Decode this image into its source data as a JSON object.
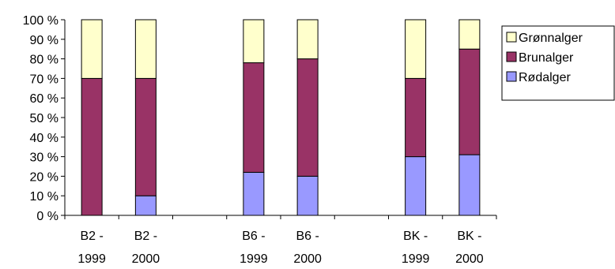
{
  "chart_data": {
    "type": "bar",
    "stacked": true,
    "categories": [
      [
        "B2 -",
        "1999"
      ],
      [
        "B2 -",
        "2000"
      ],
      [
        "",
        ""
      ],
      [
        "B6 -",
        "1999"
      ],
      [
        "B6 -",
        "2000"
      ],
      [
        "",
        ""
      ],
      [
        "BK -",
        "1999"
      ],
      [
        "BK -",
        "2000"
      ]
    ],
    "series": [
      {
        "name": "Rødalger",
        "color": "#9999ff",
        "values": [
          0,
          10,
          0,
          22,
          20,
          0,
          30,
          31
        ]
      },
      {
        "name": "Brunalger",
        "color": "#993366",
        "values": [
          70,
          60,
          0,
          56,
          60,
          0,
          40,
          54
        ]
      },
      {
        "name": "Grønnalger",
        "color": "#ffffcc",
        "values": [
          30,
          30,
          0,
          22,
          20,
          0,
          30,
          15
        ]
      }
    ],
    "y_ticks": [
      "0 %",
      "10 %",
      "20 %",
      "30 %",
      "40 %",
      "50 %",
      "60 %",
      "70 %",
      "80 %",
      "90 %",
      "100 %"
    ],
    "ylim": [
      0,
      100
    ],
    "grid": false,
    "legend_position": "right-top",
    "legend_order": [
      "Grønnalger",
      "Brunalger",
      "Rødalger"
    ],
    "title": "",
    "xlabel": "",
    "ylabel": ""
  }
}
